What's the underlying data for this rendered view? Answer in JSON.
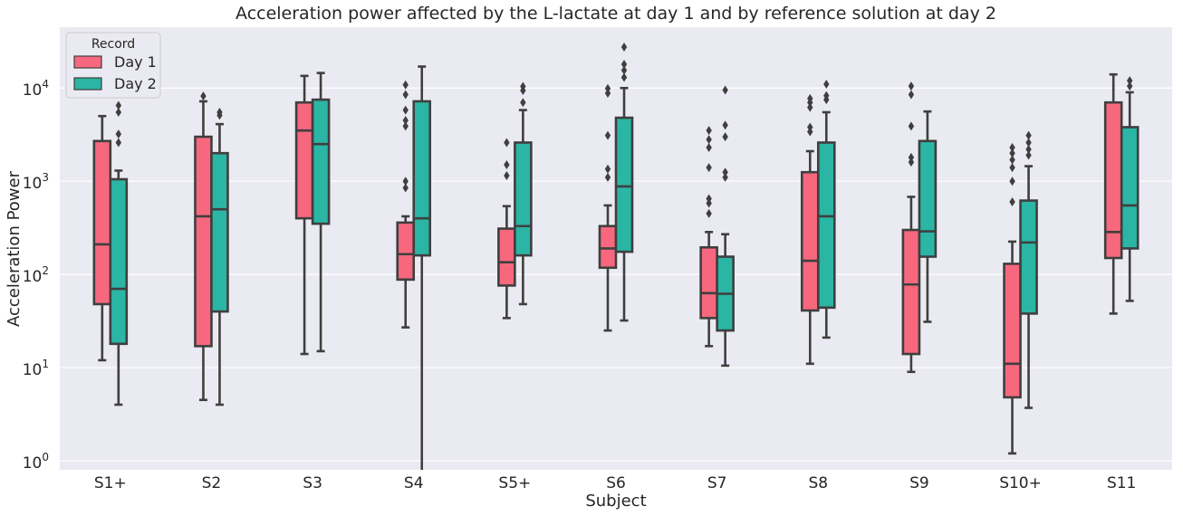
{
  "chart_data": {
    "type": "box",
    "title": "Acceleration power affected by the L-lactate at day 1 and by reference solution at day 2",
    "xlabel": "Subject",
    "ylabel": "Acceleration Power",
    "yscale": "log",
    "ylim": [
      0.8,
      45000
    ],
    "ytick_values": [
      1,
      10,
      100,
      1000,
      10000
    ],
    "ytick_labels": [
      {
        "base": "10",
        "exp": "0"
      },
      {
        "base": "10",
        "exp": "1"
      },
      {
        "base": "10",
        "exp": "2"
      },
      {
        "base": "10",
        "exp": "3"
      },
      {
        "base": "10",
        "exp": "4"
      }
    ],
    "grid": true,
    "legend_position": "top-left",
    "legend": {
      "title": "Record",
      "entries": [
        {
          "label": "Day 1",
          "color": "#f7687e"
        },
        {
          "label": "Day 2",
          "color": "#2bb5a4"
        }
      ]
    },
    "categories": [
      "S1+",
      "S2",
      "S3",
      "S4",
      "S5+",
      "S6",
      "S7",
      "S8",
      "S9",
      "S10+",
      "S11"
    ],
    "series": [
      {
        "name": "Day 1",
        "color": "#f7687e",
        "boxes": [
          {
            "whislo": 12,
            "q1": 48,
            "med": 210,
            "q3": 2700,
            "whishi": 5000,
            "fliers": []
          },
          {
            "whislo": 4.5,
            "q1": 17,
            "med": 420,
            "q3": 3000,
            "whishi": 7200,
            "fliers": [
              8200
            ]
          },
          {
            "whislo": 14,
            "q1": 400,
            "med": 3500,
            "q3": 7000,
            "whishi": 13500,
            "fliers": []
          },
          {
            "whislo": 27,
            "q1": 88,
            "med": 165,
            "q3": 360,
            "whishi": 420,
            "fliers": [
              850,
              1000,
              3900,
              4500,
              5800,
              8500,
              10800
            ]
          },
          {
            "whislo": 34,
            "q1": 76,
            "med": 135,
            "q3": 310,
            "whishi": 540,
            "fliers": [
              1150,
              1500,
              2600
            ]
          },
          {
            "whislo": 25,
            "q1": 118,
            "med": 190,
            "q3": 330,
            "whishi": 550,
            "fliers": [
              1100,
              1350,
              3100,
              8800,
              9900
            ]
          },
          {
            "whislo": 17,
            "q1": 34,
            "med": 63,
            "q3": 195,
            "whishi": 285,
            "fliers": [
              450,
              580,
              650,
              1400,
              2300,
              2800,
              3500
            ]
          },
          {
            "whislo": 11,
            "q1": 41,
            "med": 140,
            "q3": 1250,
            "whishi": 2100,
            "fliers": [
              3400,
              3800,
              6200,
              7000,
              7700
            ]
          },
          {
            "whislo": 9,
            "q1": 14,
            "med": 78,
            "q3": 300,
            "whishi": 680,
            "fliers": [
              1600,
              1800,
              3900,
              8500,
              10500
            ]
          },
          {
            "whislo": 1.2,
            "q1": 4.8,
            "med": 11,
            "q3": 130,
            "whishi": 225,
            "fliers": [
              600,
              1000,
              1400,
              1700,
              2000,
              2300
            ]
          },
          {
            "whislo": 38,
            "q1": 150,
            "med": 285,
            "q3": 7000,
            "whishi": 14000,
            "fliers": []
          }
        ]
      },
      {
        "name": "Day 2",
        "color": "#2bb5a4",
        "boxes": [
          {
            "whislo": 4,
            "q1": 18,
            "med": 70,
            "q3": 1050,
            "whishi": 1300,
            "fliers": [
              2600,
              3200,
              5500,
              6500
            ]
          },
          {
            "whislo": 4,
            "q1": 40,
            "med": 500,
            "q3": 2000,
            "whishi": 4100,
            "fliers": [
              5100,
              5500
            ]
          },
          {
            "whislo": 15,
            "q1": 350,
            "med": 2500,
            "q3": 7500,
            "whishi": 14500,
            "fliers": []
          },
          {
            "whislo": 0.5,
            "q1": 160,
            "med": 400,
            "q3": 7200,
            "whishi": 17000,
            "fliers": []
          },
          {
            "whislo": 48,
            "q1": 160,
            "med": 330,
            "q3": 2600,
            "whishi": 5800,
            "fliers": [
              7000,
              9400,
              10400
            ]
          },
          {
            "whislo": 32,
            "q1": 175,
            "med": 880,
            "q3": 4800,
            "whishi": 10000,
            "fliers": [
              13000,
              15500,
              18000,
              27500
            ]
          },
          {
            "whislo": 10.5,
            "q1": 25,
            "med": 62,
            "q3": 155,
            "whishi": 270,
            "fliers": [
              1100,
              1250,
              3000,
              4000,
              9500
            ]
          },
          {
            "whislo": 21,
            "q1": 44,
            "med": 420,
            "q3": 2600,
            "whishi": 5500,
            "fliers": [
              7500,
              8300,
              11000
            ]
          },
          {
            "whislo": 31,
            "q1": 155,
            "med": 290,
            "q3": 2700,
            "whishi": 5600,
            "fliers": []
          },
          {
            "whislo": 3.7,
            "q1": 38,
            "med": 220,
            "q3": 620,
            "whishi": 1450,
            "fliers": [
              1900,
              2200,
              2600,
              3100
            ]
          },
          {
            "whislo": 52,
            "q1": 190,
            "med": 550,
            "q3": 3800,
            "whishi": 9000,
            "fliers": [
              10500,
              12000
            ]
          }
        ]
      }
    ]
  }
}
